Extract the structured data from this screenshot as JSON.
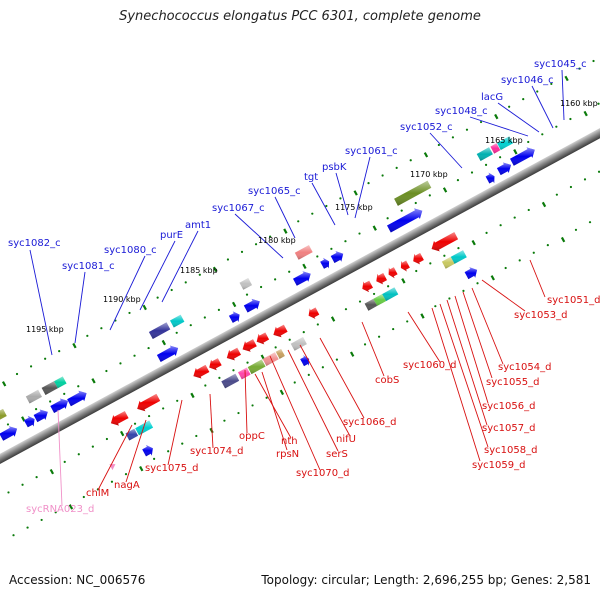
{
  "title": "Synechococcus elongatus PCC 6301, complete genome",
  "footer": {
    "accession": "Accession: NC_006576",
    "topology": "Topology: circular; Length: 2,696,255 bp; Genes: 2,581"
  },
  "ticks": [
    "1160 kbp",
    "1165 kbp",
    "1170 kbp",
    "1175 kbp",
    "1180 kbp",
    "1185 kbp",
    "1190 kbp",
    "1195 kbp"
  ],
  "top_labels": [
    "syc1045_c",
    "syc1046_c",
    "lacG",
    "syc1048_c",
    "syc1052_c",
    "syc1061_c",
    "psbK",
    "tgt",
    "syc1065_c",
    "syc1067_c",
    "amt1",
    "purE",
    "syc1080_c",
    "syc1081_c",
    "syc1082_c"
  ],
  "bottom_labels": [
    "syc1051_d",
    "syc1053_d",
    "syc1054_d",
    "syc1055_d",
    "syc1056_d",
    "syc1057_d",
    "syc1058_d",
    "syc1059_d",
    "syc1060_d",
    "cobS",
    "syc1066_d",
    "nifU",
    "serS",
    "syc1070_d",
    "rpsN",
    "nth",
    "oppC",
    "syc1074_d",
    "syc1075_d",
    "nagA",
    "chlM"
  ],
  "rna_labels": [
    "sycRNA023_d"
  ],
  "colors": {
    "forward": "#0000ee",
    "reverse": "#ee0000",
    "rna": "#f090c8",
    "top_label": "#1a1ad6",
    "bottom_label": "#d81010",
    "tick_marker": "#0a7a0a"
  }
}
